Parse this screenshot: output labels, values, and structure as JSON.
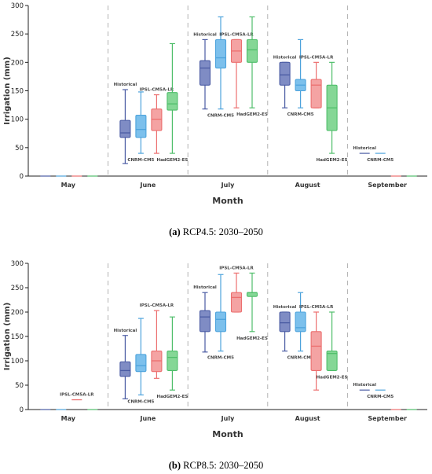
{
  "colors": {
    "Historical": "#4a5ba3",
    "CNRM-CM5": "#4da3dc",
    "IPSL-CM5A-LR": "#ec6f6f",
    "HadGEM2-ES": "#4fbe6a",
    "Historical_fill": "#7f8cc4",
    "CNRM-CM5_fill": "#7cc0ec",
    "IPSL-CM5A-LR_fill": "#f4a3a3",
    "HadGEM2-ES_fill": "#85d796"
  },
  "chart_data": [
    {
      "type": "box",
      "caption_bold": "(a)",
      "caption_text": " RCP4.5: 2030–2050",
      "xlabel": "Month",
      "ylabel": "Irrigation (mm)",
      "ylim": [
        0,
        300
      ],
      "yticks": [
        0,
        50,
        100,
        150,
        200,
        250,
        300
      ],
      "categories": [
        "May",
        "June",
        "July",
        "August",
        "September"
      ],
      "models": [
        "Historical",
        "CNRM-CM5",
        "IPSL-CM5A-LR",
        "HadGEM2-ES"
      ],
      "boxes": [
        {
          "month": "May",
          "model": "Historical",
          "min": 0,
          "q1": 0,
          "median": 0,
          "q3": 0,
          "max": 0,
          "label": ""
        },
        {
          "month": "May",
          "model": "CNRM-CM5",
          "min": 0,
          "q1": 0,
          "median": 0,
          "q3": 0,
          "max": 0,
          "label": ""
        },
        {
          "month": "May",
          "model": "IPSL-CM5A-LR",
          "min": 0,
          "q1": 0,
          "median": 0,
          "q3": 0,
          "max": 0,
          "label": ""
        },
        {
          "month": "May",
          "model": "HadGEM2-ES",
          "min": 0,
          "q1": 0,
          "median": 0,
          "q3": 0,
          "max": 0,
          "label": ""
        },
        {
          "month": "June",
          "model": "Historical",
          "min": 22,
          "q1": 68,
          "median": 76,
          "q3": 98,
          "max": 152,
          "label": "Historical"
        },
        {
          "month": "June",
          "model": "CNRM-CM5",
          "min": 40,
          "q1": 68,
          "median": 82,
          "q3": 107,
          "max": 148,
          "label": "CNRM-CM5"
        },
        {
          "month": "June",
          "model": "IPSL-CM5A-LR",
          "min": 40,
          "q1": 80,
          "median": 100,
          "q3": 118,
          "max": 143,
          "label": "IPSL-CM5A-LR"
        },
        {
          "month": "June",
          "model": "HadGEM2-ES",
          "min": 40,
          "q1": 116,
          "median": 127,
          "q3": 147,
          "max": 233,
          "label": "HadGEM2-ES"
        },
        {
          "month": "July",
          "model": "Historical",
          "min": 118,
          "q1": 160,
          "median": 190,
          "q3": 203,
          "max": 240,
          "label": "Historical"
        },
        {
          "month": "July",
          "model": "CNRM-CM5",
          "min": 118,
          "q1": 190,
          "median": 208,
          "q3": 240,
          "max": 280,
          "label": "CNRM-CM5"
        },
        {
          "month": "July",
          "model": "IPSL-CM5A-LR",
          "min": 120,
          "q1": 200,
          "median": 220,
          "q3": 240,
          "max": 240,
          "label": "IPSL-CM5A-LR"
        },
        {
          "month": "July",
          "model": "HadGEM2-ES",
          "min": 120,
          "q1": 200,
          "median": 222,
          "q3": 240,
          "max": 280,
          "label": "HadGEM2-ES"
        },
        {
          "month": "August",
          "model": "Historical",
          "min": 120,
          "q1": 160,
          "median": 178,
          "q3": 200,
          "max": 200,
          "label": "Historical"
        },
        {
          "month": "August",
          "model": "CNRM-CM5",
          "min": 120,
          "q1": 150,
          "median": 160,
          "q3": 170,
          "max": 240,
          "label": "CNRM-CM5"
        },
        {
          "month": "August",
          "model": "IPSL-CM5A-LR",
          "min": 120,
          "q1": 120,
          "median": 160,
          "q3": 170,
          "max": 200,
          "label": "IPSL-CM5A-LR"
        },
        {
          "month": "August",
          "model": "HadGEM2-ES",
          "min": 40,
          "q1": 80,
          "median": 120,
          "q3": 160,
          "max": 200,
          "label": "HadGEM2-ES"
        },
        {
          "month": "September",
          "model": "Historical",
          "min": 40,
          "q1": 40,
          "median": 40,
          "q3": 40,
          "max": 40,
          "label": "Historical"
        },
        {
          "month": "September",
          "model": "CNRM-CM5",
          "min": 40,
          "q1": 40,
          "median": 40,
          "q3": 40,
          "max": 40,
          "label": "CNRM-CM5"
        },
        {
          "month": "September",
          "model": "IPSL-CM5A-LR",
          "min": 0,
          "q1": 0,
          "median": 0,
          "q3": 0,
          "max": 0,
          "label": ""
        },
        {
          "month": "September",
          "model": "HadGEM2-ES",
          "min": 0,
          "q1": 0,
          "median": 0,
          "q3": 0,
          "max": 0,
          "label": ""
        }
      ]
    },
    {
      "type": "box",
      "caption_bold": "(b)",
      "caption_text": " RCP8.5: 2030–2050",
      "xlabel": "Month",
      "ylabel": "Irrigation (mm)",
      "ylim": [
        0,
        300
      ],
      "yticks": [
        0,
        50,
        100,
        150,
        200,
        250,
        300
      ],
      "categories": [
        "May",
        "June",
        "July",
        "August",
        "September"
      ],
      "models": [
        "Historical",
        "CNRM-CM5",
        "IPSL-CM5A-LR",
        "HadGEM2-ES"
      ],
      "boxes": [
        {
          "month": "May",
          "model": "Historical",
          "min": 0,
          "q1": 0,
          "median": 0,
          "q3": 0,
          "max": 0,
          "label": ""
        },
        {
          "month": "May",
          "model": "CNRM-CM5",
          "min": 0,
          "q1": 0,
          "median": 0,
          "q3": 0,
          "max": 0,
          "label": ""
        },
        {
          "month": "May",
          "model": "IPSL-CM5A-LR",
          "min": 20,
          "q1": 20,
          "median": 20,
          "q3": 20,
          "max": 20,
          "label": "IPSL-CM5A-LR"
        },
        {
          "month": "May",
          "model": "HadGEM2-ES",
          "min": 0,
          "q1": 0,
          "median": 0,
          "q3": 0,
          "max": 0,
          "label": ""
        },
        {
          "month": "June",
          "model": "Historical",
          "min": 22,
          "q1": 68,
          "median": 80,
          "q3": 98,
          "max": 152,
          "label": "Historical"
        },
        {
          "month": "June",
          "model": "CNRM-CM5",
          "min": 30,
          "q1": 78,
          "median": 90,
          "q3": 113,
          "max": 187,
          "label": "CNRM-CM5"
        },
        {
          "month": "June",
          "model": "IPSL-CM5A-LR",
          "min": 64,
          "q1": 78,
          "median": 100,
          "q3": 120,
          "max": 203,
          "label": "IPSL-CM5A-LR"
        },
        {
          "month": "June",
          "model": "HadGEM2-ES",
          "min": 40,
          "q1": 80,
          "median": 107,
          "q3": 120,
          "max": 190,
          "label": "HadGEM2-ES"
        },
        {
          "month": "July",
          "model": "Historical",
          "min": 118,
          "q1": 160,
          "median": 190,
          "q3": 203,
          "max": 240,
          "label": "Historical"
        },
        {
          "month": "July",
          "model": "CNRM-CM5",
          "min": 120,
          "q1": 160,
          "median": 185,
          "q3": 200,
          "max": 277,
          "label": "CNRM-CM5"
        },
        {
          "month": "July",
          "model": "IPSL-CM5A-LR",
          "min": 200,
          "q1": 200,
          "median": 230,
          "q3": 240,
          "max": 280,
          "label": "IPSL-CM5A-LR"
        },
        {
          "month": "July",
          "model": "HadGEM2-ES",
          "min": 160,
          "q1": 232,
          "median": 240,
          "q3": 240,
          "max": 280,
          "label": "HadGEM2-ES"
        },
        {
          "month": "August",
          "model": "Historical",
          "min": 120,
          "q1": 160,
          "median": 178,
          "q3": 200,
          "max": 200,
          "label": "Historical"
        },
        {
          "month": "August",
          "model": "CNRM-CM5",
          "min": 120,
          "q1": 160,
          "median": 168,
          "q3": 200,
          "max": 240,
          "label": "CNRM-CM5"
        },
        {
          "month": "August",
          "model": "IPSL-CM5A-LR",
          "min": 40,
          "q1": 80,
          "median": 130,
          "q3": 160,
          "max": 200,
          "label": "IPSL-CM5A-LR"
        },
        {
          "month": "August",
          "model": "HadGEM2-ES",
          "min": 80,
          "q1": 80,
          "median": 115,
          "q3": 120,
          "max": 200,
          "label": "HadGEM2-ES"
        },
        {
          "month": "September",
          "model": "Historical",
          "min": 40,
          "q1": 40,
          "median": 40,
          "q3": 40,
          "max": 40,
          "label": "Historical"
        },
        {
          "month": "September",
          "model": "CNRM-CM5",
          "min": 40,
          "q1": 40,
          "median": 40,
          "q3": 40,
          "max": 40,
          "label": "CNRM-CM5"
        },
        {
          "month": "September",
          "model": "IPSL-CM5A-LR",
          "min": 0,
          "q1": 0,
          "median": 0,
          "q3": 0,
          "max": 0,
          "label": ""
        },
        {
          "month": "September",
          "model": "HadGEM2-ES",
          "min": 0,
          "q1": 0,
          "median": 0,
          "q3": 0,
          "max": 0,
          "label": ""
        }
      ]
    }
  ]
}
